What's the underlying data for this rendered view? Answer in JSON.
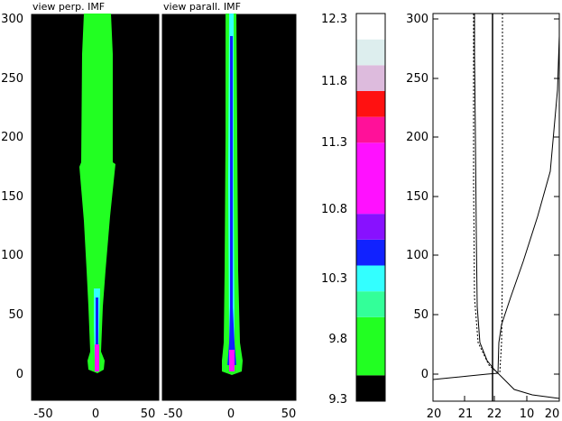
{
  "chart_data": [
    {
      "type": "heatmap",
      "title": "view perp. IMF",
      "x_ticks": [
        "-50",
        "0",
        "50"
      ],
      "y_ticks": [
        "0",
        "50",
        "100",
        "150",
        "200",
        "250",
        "300"
      ],
      "xlim": [
        -55,
        55
      ],
      "ylim": [
        -22,
        302
      ],
      "background": "#000000"
    },
    {
      "type": "heatmap",
      "title": "view parall. IMF",
      "x_ticks": [
        "-50",
        "0",
        "50"
      ],
      "xlim": [
        -55,
        55
      ],
      "ylim": [
        -22,
        302
      ],
      "background": "#000000"
    },
    {
      "type": "colorbar",
      "tick_labels": [
        "9.3",
        "9.8",
        "10.3",
        "10.8",
        "11.3",
        "11.8",
        "12.3"
      ],
      "range": [
        9.3,
        12.3
      ],
      "bands": [
        {
          "from": 9.3,
          "to": 9.5,
          "color": "#000000"
        },
        {
          "from": 9.5,
          "to": 9.95,
          "color": "#22ff22"
        },
        {
          "from": 9.95,
          "to": 10.15,
          "color": "#33ff99"
        },
        {
          "from": 10.15,
          "to": 10.35,
          "color": "#33ffff"
        },
        {
          "from": 10.35,
          "to": 10.55,
          "color": "#1122ff"
        },
        {
          "from": 10.55,
          "to": 10.75,
          "color": "#8811ff"
        },
        {
          "from": 10.75,
          "to": 11.3,
          "color": "#ff11ff"
        },
        {
          "from": 11.3,
          "to": 11.5,
          "color": "#ff1199"
        },
        {
          "from": 11.5,
          "to": 11.7,
          "color": "#ff1111"
        },
        {
          "from": 11.7,
          "to": 11.9,
          "color": "#ddbbdd"
        },
        {
          "from": 11.9,
          "to": 12.1,
          "color": "#ddeeee"
        },
        {
          "from": 12.1,
          "to": 12.3,
          "color": "#ffffff"
        }
      ]
    },
    {
      "type": "line",
      "x_ticks": [
        "20",
        "21",
        "22",
        "10",
        "20"
      ],
      "y_ticks": [
        "0",
        "50",
        "100",
        "150",
        "200",
        "250",
        "300"
      ],
      "ylim": [
        -22,
        302
      ]
    }
  ]
}
